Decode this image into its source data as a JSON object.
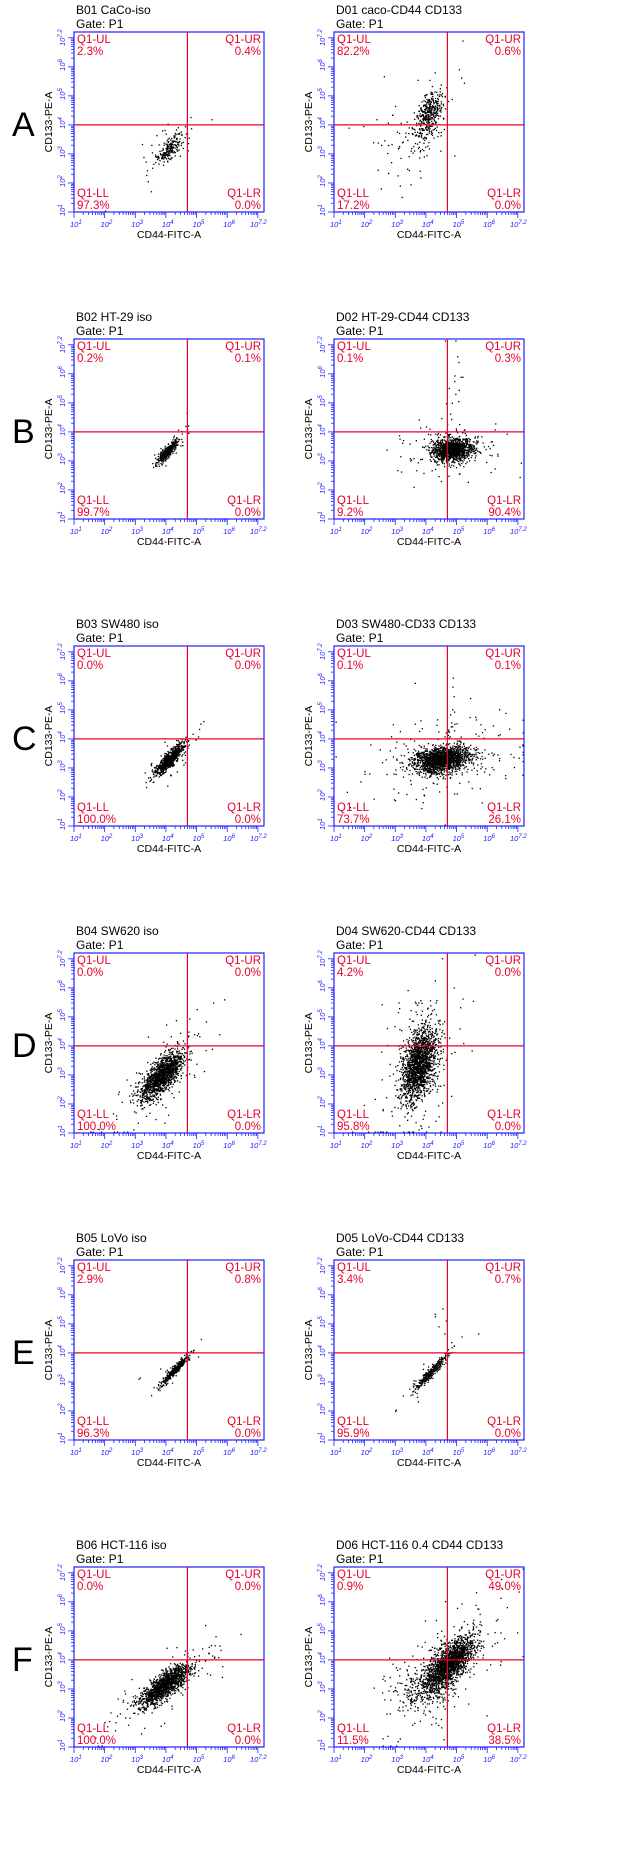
{
  "colors": {
    "frame": "#2020ff",
    "gate": "#e8002a",
    "dots": "#000000",
    "text": "#000000"
  },
  "chart_data": [
    {
      "type": "scatter",
      "row_letter": "A",
      "title": "B01 CaCo-iso",
      "gate": "Gate: P1",
      "xlabel": "CD44-FITC-A",
      "ylabel": "CD133-PE-A",
      "xlim": [
        1,
        7.2
      ],
      "ylim": [
        1,
        7.2
      ],
      "x_ticks": [
        "10^1",
        "10^2",
        "10^3",
        "10^4",
        "10^5",
        "10^6",
        "10^7.2"
      ],
      "y_ticks": [
        "10^1",
        "10^2",
        "10^3",
        "10^4",
        "10^5",
        "10^6",
        "10^7.2"
      ],
      "gate_x": 4.7,
      "gate_y": 4.0,
      "quadrants": {
        "UL": {
          "label": "Q1-UL",
          "value": "2.3%"
        },
        "UR": {
          "label": "Q1-UR",
          "value": "0.4%"
        },
        "LL": {
          "label": "Q1-LL",
          "value": "97.3%"
        },
        "LR": {
          "label": "Q1-LR",
          "value": "0.0%"
        }
      },
      "population": {
        "cx": 4.1,
        "cy": 3.2,
        "sx": 0.22,
        "sy": 0.25,
        "rho": 0.75,
        "n": 220,
        "spread": 0.6,
        "extra": [
          [
            3.7,
            3.3,
            0.5,
            0.6,
            12
          ]
        ]
      }
    },
    {
      "type": "scatter",
      "row_letter": "",
      "title": "D01 caco-CD44 CD133",
      "gate": "Gate: P1",
      "xlabel": "CD44-FITC-A",
      "ylabel": "CD133-PE-A",
      "xlim": [
        1,
        7.2
      ],
      "ylim": [
        1,
        7.2
      ],
      "x_ticks": [
        "10^1",
        "10^2",
        "10^3",
        "10^4",
        "10^5",
        "10^6",
        "10^7.2"
      ],
      "y_ticks": [
        "10^1",
        "10^2",
        "10^3",
        "10^4",
        "10^5",
        "10^6",
        "10^7.2"
      ],
      "gate_x": 4.7,
      "gate_y": 4.0,
      "quadrants": {
        "UL": {
          "label": "Q1-UL",
          "value": "82.2%"
        },
        "UR": {
          "label": "Q1-UR",
          "value": "0.6%"
        },
        "LL": {
          "label": "Q1-LL",
          "value": "17.2%"
        },
        "LR": {
          "label": "Q1-LR",
          "value": "0.0%"
        }
      },
      "population": {
        "cx": 4.05,
        "cy": 4.35,
        "sx": 0.24,
        "sy": 0.42,
        "rho": 0.5,
        "n": 420,
        "spread": 0.7,
        "extra": [
          [
            3.3,
            3.3,
            0.6,
            0.55,
            60
          ]
        ]
      }
    },
    {
      "type": "scatter",
      "row_letter": "B",
      "title": "B02 HT-29 iso",
      "gate": "Gate: P1",
      "xlabel": "CD44-FITC-A",
      "ylabel": "CD133-PE-A",
      "xlim": [
        1,
        7.2
      ],
      "ylim": [
        1,
        7.2
      ],
      "x_ticks": [
        "10^1",
        "10^2",
        "10^3",
        "10^4",
        "10^5",
        "10^6",
        "10^7.2"
      ],
      "y_ticks": [
        "10^1",
        "10^2",
        "10^3",
        "10^4",
        "10^5",
        "10^6",
        "10^7.2"
      ],
      "gate_x": 4.7,
      "gate_y": 4.0,
      "quadrants": {
        "UL": {
          "label": "Q1-UL",
          "value": "0.2%"
        },
        "UR": {
          "label": "Q1-UR",
          "value": "0.1%"
        },
        "LL": {
          "label": "Q1-LL",
          "value": "99.7%"
        },
        "LR": {
          "label": "Q1-LR",
          "value": "0.0%"
        }
      },
      "population": {
        "cx": 4.05,
        "cy": 3.35,
        "sx": 0.15,
        "sy": 0.18,
        "rho": 0.85,
        "n": 420,
        "spread": 0.35,
        "extra": [
          [
            4.7,
            4.5,
            0.05,
            0.2,
            3
          ]
        ]
      }
    },
    {
      "type": "scatter",
      "row_letter": "",
      "title": "D02 HT-29-CD44 CD133",
      "gate": "Gate: P1",
      "xlabel": "CD44-FITC-A",
      "ylabel": "CD133-PE-A",
      "xlim": [
        1,
        7.2
      ],
      "ylim": [
        1,
        7.2
      ],
      "x_ticks": [
        "10^1",
        "10^2",
        "10^3",
        "10^4",
        "10^5",
        "10^6",
        "10^7.2"
      ],
      "y_ticks": [
        "10^1",
        "10^2",
        "10^3",
        "10^4",
        "10^5",
        "10^6",
        "10^7.2"
      ],
      "gate_x": 4.7,
      "gate_y": 4.0,
      "quadrants": {
        "UL": {
          "label": "Q1-UL",
          "value": "0.1%"
        },
        "UR": {
          "label": "Q1-UR",
          "value": "0.3%"
        },
        "LL": {
          "label": "Q1-LL",
          "value": "9.2%"
        },
        "LR": {
          "label": "Q1-LR",
          "value": "90.4%"
        }
      },
      "population": {
        "cx": 4.85,
        "cy": 3.4,
        "sx": 0.33,
        "sy": 0.2,
        "rho": 0.15,
        "n": 1300,
        "spread": 0.6,
        "extra": [
          [
            4.9,
            4.9,
            0.12,
            0.9,
            25
          ]
        ]
      }
    },
    {
      "type": "scatter",
      "row_letter": "C",
      "title": "B03 SW480 iso",
      "gate": "Gate: P1",
      "xlabel": "CD44-FITC-A",
      "ylabel": "CD133-PE-A",
      "xlim": [
        1,
        7.2
      ],
      "ylim": [
        1,
        7.2
      ],
      "x_ticks": [
        "10^1",
        "10^2",
        "10^3",
        "10^4",
        "10^5",
        "10^6",
        "10^7.2"
      ],
      "y_ticks": [
        "10^1",
        "10^2",
        "10^3",
        "10^4",
        "10^5",
        "10^6",
        "10^7.2"
      ],
      "gate_x": 4.7,
      "gate_y": 4.0,
      "quadrants": {
        "UL": {
          "label": "Q1-UL",
          "value": "0.0%"
        },
        "UR": {
          "label": "Q1-UR",
          "value": "0.0%"
        },
        "LL": {
          "label": "Q1-LL",
          "value": "100.0%"
        },
        "LR": {
          "label": "Q1-LR",
          "value": "0.0%"
        }
      },
      "population": {
        "cx": 4.1,
        "cy": 3.3,
        "sx": 0.22,
        "sy": 0.25,
        "rho": 0.85,
        "n": 800,
        "spread": 0.4,
        "extra": []
      }
    },
    {
      "type": "scatter",
      "row_letter": "",
      "title": "D03 SW480-CD33 CD133",
      "gate": "Gate: P1",
      "xlabel": "CD44-FITC-A",
      "ylabel": "CD133-PE-A",
      "xlim": [
        1,
        7.2
      ],
      "ylim": [
        1,
        7.2
      ],
      "x_ticks": [
        "10^1",
        "10^2",
        "10^3",
        "10^4",
        "10^5",
        "10^6",
        "10^7.2"
      ],
      "y_ticks": [
        "10^1",
        "10^2",
        "10^3",
        "10^4",
        "10^5",
        "10^6",
        "10^7.2"
      ],
      "gate_x": 4.7,
      "gate_y": 4.0,
      "quadrants": {
        "UL": {
          "label": "Q1-UL",
          "value": "0.1%"
        },
        "UR": {
          "label": "Q1-UR",
          "value": "0.1%"
        },
        "LL": {
          "label": "Q1-LL",
          "value": "73.7%"
        },
        "LR": {
          "label": "Q1-LR",
          "value": "26.1%"
        }
      },
      "population": {
        "cx": 4.5,
        "cy": 3.3,
        "sx": 0.45,
        "sy": 0.22,
        "rho": 0.25,
        "n": 1800,
        "spread": 0.8,
        "extra": [
          [
            4.8,
            4.6,
            0.1,
            0.9,
            20
          ]
        ]
      }
    },
    {
      "type": "scatter",
      "row_letter": "D",
      "title": "B04 SW620 iso",
      "gate": "Gate: P1",
      "xlabel": "CD44-FITC-A",
      "ylabel": "CD133-PE-A",
      "xlim": [
        1,
        7.2
      ],
      "ylim": [
        1,
        7.2
      ],
      "x_ticks": [
        "10^1",
        "10^2",
        "10^3",
        "10^4",
        "10^5",
        "10^6",
        "10^7.2"
      ],
      "y_ticks": [
        "10^1",
        "10^2",
        "10^3",
        "10^4",
        "10^5",
        "10^6",
        "10^7.2"
      ],
      "gate_x": 4.7,
      "gate_y": 4.0,
      "quadrants": {
        "UL": {
          "label": "Q1-UL",
          "value": "0.0%"
        },
        "UR": {
          "label": "Q1-UR",
          "value": "0.0%"
        },
        "LL": {
          "label": "Q1-LL",
          "value": "100.0%"
        },
        "LR": {
          "label": "Q1-LR",
          "value": "0.0%"
        }
      },
      "population": {
        "cx": 3.85,
        "cy": 3.0,
        "sx": 0.35,
        "sy": 0.42,
        "rho": 0.75,
        "n": 1400,
        "spread": 0.5,
        "extra": []
      }
    },
    {
      "type": "scatter",
      "row_letter": "",
      "title": "D04 SW620-CD44 CD133",
      "gate": "Gate: P1",
      "xlabel": "CD44-FITC-A",
      "ylabel": "CD133-PE-A",
      "xlim": [
        1,
        7.2
      ],
      "ylim": [
        1,
        7.2
      ],
      "x_ticks": [
        "10^1",
        "10^2",
        "10^3",
        "10^4",
        "10^5",
        "10^6",
        "10^7.2"
      ],
      "y_ticks": [
        "10^1",
        "10^2",
        "10^3",
        "10^4",
        "10^5",
        "10^6",
        "10^7.2"
      ],
      "gate_x": 4.7,
      "gate_y": 4.0,
      "quadrants": {
        "UL": {
          "label": "Q1-UL",
          "value": "4.2%"
        },
        "UR": {
          "label": "Q1-UR",
          "value": "0.0%"
        },
        "LL": {
          "label": "Q1-LL",
          "value": "95.8%"
        },
        "LR": {
          "label": "Q1-LR",
          "value": "0.0%"
        }
      },
      "population": {
        "cx": 3.75,
        "cy": 3.35,
        "sx": 0.28,
        "sy": 0.62,
        "rho": 0.4,
        "n": 1800,
        "spread": 0.6,
        "extra": []
      }
    },
    {
      "type": "scatter",
      "row_letter": "E",
      "title": "B05 LoVo iso",
      "gate": "Gate: P1",
      "xlabel": "CD44-FITC-A",
      "ylabel": "CD133-PE-A",
      "xlim": [
        1,
        7.2
      ],
      "ylim": [
        1,
        7.2
      ],
      "x_ticks": [
        "10^1",
        "10^2",
        "10^3",
        "10^4",
        "10^5",
        "10^6",
        "10^7.2"
      ],
      "y_ticks": [
        "10^1",
        "10^2",
        "10^3",
        "10^4",
        "10^5",
        "10^6",
        "10^7.2"
      ],
      "gate_x": 4.7,
      "gate_y": 4.0,
      "quadrants": {
        "UL": {
          "label": "Q1-UL",
          "value": "2.9%"
        },
        "UR": {
          "label": "Q1-UR",
          "value": "0.8%"
        },
        "LL": {
          "label": "Q1-LL",
          "value": "96.3%"
        },
        "LR": {
          "label": "Q1-LR",
          "value": "0.0%"
        }
      },
      "population": {
        "cx": 4.3,
        "cy": 3.45,
        "sx": 0.22,
        "sy": 0.26,
        "rho": 0.95,
        "n": 380,
        "spread": 0.4,
        "extra": [
          [
            3.1,
            3.2,
            0.05,
            0.05,
            2
          ]
        ]
      }
    },
    {
      "type": "scatter",
      "row_letter": "",
      "title": "D05 LoVo-CD44 CD133",
      "gate": "Gate: P1",
      "xlabel": "CD44-FITC-A",
      "ylabel": "CD133-PE-A",
      "xlim": [
        1,
        7.2
      ],
      "ylim": [
        1,
        7.2
      ],
      "x_ticks": [
        "10^1",
        "10^2",
        "10^3",
        "10^4",
        "10^5",
        "10^6",
        "10^7.2"
      ],
      "y_ticks": [
        "10^1",
        "10^2",
        "10^3",
        "10^4",
        "10^5",
        "10^6",
        "10^7.2"
      ],
      "gate_x": 4.7,
      "gate_y": 4.0,
      "quadrants": {
        "UL": {
          "label": "Q1-UL",
          "value": "3.4%"
        },
        "UR": {
          "label": "Q1-UR",
          "value": "0.7%"
        },
        "LL": {
          "label": "Q1-LL",
          "value": "95.9%"
        },
        "LR": {
          "label": "Q1-LR",
          "value": "0.0%"
        }
      },
      "population": {
        "cx": 4.15,
        "cy": 3.35,
        "sx": 0.24,
        "sy": 0.27,
        "rho": 0.95,
        "n": 380,
        "spread": 0.5,
        "extra": [
          [
            4.5,
            5.4,
            0.15,
            0.6,
            6
          ]
        ]
      }
    },
    {
      "type": "scatter",
      "row_letter": "F",
      "title": "B06 HCT-116 iso",
      "gate": "Gate: P1",
      "xlabel": "CD44-FITC-A",
      "ylabel": "CD133-PE-A",
      "xlim": [
        1,
        7.2
      ],
      "ylim": [
        1,
        7.2
      ],
      "x_ticks": [
        "10^1",
        "10^2",
        "10^3",
        "10^4",
        "10^5",
        "10^6",
        "10^7.2"
      ],
      "y_ticks": [
        "10^1",
        "10^2",
        "10^3",
        "10^4",
        "10^5",
        "10^6",
        "10^7.2"
      ],
      "gate_x": 4.7,
      "gate_y": 4.0,
      "quadrants": {
        "UL": {
          "label": "Q1-UL",
          "value": "0.0%"
        },
        "UR": {
          "label": "Q1-UR",
          "value": "0.0%"
        },
        "LL": {
          "label": "Q1-LL",
          "value": "100.0%"
        },
        "LR": {
          "label": "Q1-LR",
          "value": "0.0%"
        }
      },
      "population": {
        "cx": 3.95,
        "cy": 3.15,
        "sx": 0.4,
        "sy": 0.36,
        "rho": 0.8,
        "n": 1400,
        "spread": 0.5,
        "extra": []
      }
    },
    {
      "type": "scatter",
      "row_letter": "",
      "title": "D06 HCT-116 0.4 CD44 CD133",
      "gate": "Gate: P1",
      "xlabel": "CD44-FITC-A",
      "ylabel": "CD133-PE-A",
      "xlim": [
        1,
        7.2
      ],
      "ylim": [
        1,
        7.2
      ],
      "x_ticks": [
        "10^1",
        "10^2",
        "10^3",
        "10^4",
        "10^5",
        "10^6",
        "10^7.2"
      ],
      "y_ticks": [
        "10^1",
        "10^2",
        "10^3",
        "10^4",
        "10^5",
        "10^6",
        "10^7.2"
      ],
      "gate_x": 4.7,
      "gate_y": 4.0,
      "quadrants": {
        "UL": {
          "label": "Q1-UL",
          "value": "0.9%"
        },
        "UR": {
          "label": "Q1-UR",
          "value": "49.0%"
        },
        "LL": {
          "label": "Q1-LL",
          "value": "11.5%"
        },
        "LR": {
          "label": "Q1-LR",
          "value": "38.5%"
        }
      },
      "population": {
        "cx": 4.75,
        "cy": 3.9,
        "sx": 0.4,
        "sy": 0.45,
        "rho": 0.7,
        "n": 1900,
        "spread": 0.6,
        "extra": [
          [
            3.9,
            3.0,
            0.45,
            0.4,
            250
          ]
        ]
      }
    }
  ]
}
